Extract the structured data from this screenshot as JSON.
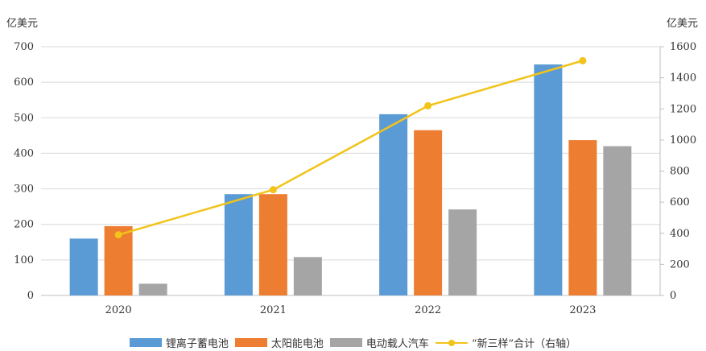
{
  "chart_data": {
    "type": "bar",
    "categories": [
      "2020",
      "2021",
      "2022",
      "2023"
    ],
    "series": [
      {
        "name": "锂离子蓄电池",
        "type": "bar",
        "axis": "left",
        "color": "#5b9bd5",
        "values": [
          160,
          285,
          510,
          650
        ]
      },
      {
        "name": "太阳能电池",
        "type": "bar",
        "axis": "left",
        "color": "#ed7d31",
        "values": [
          195,
          285,
          465,
          437
        ]
      },
      {
        "name": "电动载人汽车",
        "type": "bar",
        "axis": "left",
        "color": "#a5a5a5",
        "values": [
          33,
          108,
          242,
          420
        ]
      },
      {
        "name": "“新三样”合计（右轴）",
        "type": "line",
        "axis": "right",
        "color": "#f2c318",
        "values": [
          390,
          680,
          1220,
          1510
        ]
      }
    ],
    "ylabel": "亿美元",
    "y2label": "亿美元",
    "ylim": [
      0,
      700
    ],
    "y2lim": [
      0,
      1600
    ],
    "yticks": [
      "0",
      "100",
      "200",
      "300",
      "400",
      "500",
      "600",
      "700"
    ],
    "y2ticks": [
      "0",
      "200",
      "400",
      "600",
      "800",
      "1000",
      "1200",
      "1400",
      "1600"
    ],
    "grid": true,
    "legend_position": "bottom"
  }
}
